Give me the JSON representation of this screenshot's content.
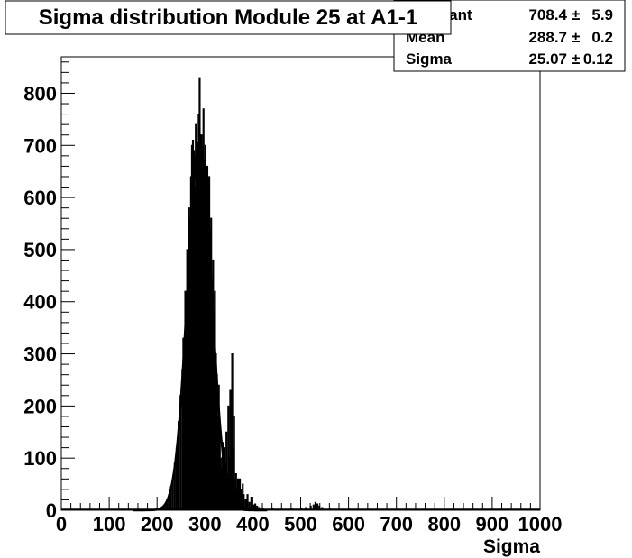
{
  "chart_data": {
    "type": "histogram",
    "title": "Sigma distribution Module 25 at A1-1",
    "xlabel": "Sigma",
    "ylabel": "",
    "xlim": [
      0,
      1000
    ],
    "ylim": [
      0,
      870
    ],
    "x_ticks": [
      "0",
      "100",
      "200",
      "300",
      "400",
      "500",
      "600",
      "700",
      "800",
      "900",
      "1000"
    ],
    "y_ticks": [
      "0",
      "100",
      "200",
      "300",
      "400",
      "500",
      "600",
      "700",
      "800"
    ],
    "grid": false,
    "histogram": {
      "bin_width": 2,
      "bins": [
        [
          200,
          2
        ],
        [
          204,
          3
        ],
        [
          208,
          5
        ],
        [
          212,
          8
        ],
        [
          216,
          12
        ],
        [
          220,
          20
        ],
        [
          224,
          30
        ],
        [
          228,
          45
        ],
        [
          232,
          60
        ],
        [
          236,
          90
        ],
        [
          240,
          120
        ],
        [
          244,
          170
        ],
        [
          248,
          220
        ],
        [
          252,
          270
        ],
        [
          254,
          330
        ],
        [
          256,
          300
        ],
        [
          258,
          420
        ],
        [
          260,
          380
        ],
        [
          262,
          500
        ],
        [
          264,
          450
        ],
        [
          266,
          580
        ],
        [
          268,
          560
        ],
        [
          270,
          640
        ],
        [
          272,
          700
        ],
        [
          274,
          710
        ],
        [
          276,
          690
        ],
        [
          278,
          620
        ],
        [
          280,
          740
        ],
        [
          282,
          660
        ],
        [
          284,
          700
        ],
        [
          286,
          760
        ],
        [
          288,
          830
        ],
        [
          290,
          650
        ],
        [
          292,
          720
        ],
        [
          294,
          690
        ],
        [
          296,
          770
        ],
        [
          298,
          650
        ],
        [
          300,
          700
        ],
        [
          302,
          620
        ],
        [
          304,
          660
        ],
        [
          306,
          590
        ],
        [
          308,
          640
        ],
        [
          310,
          540
        ],
        [
          312,
          560
        ],
        [
          314,
          420
        ],
        [
          316,
          480
        ],
        [
          318,
          350
        ],
        [
          320,
          420
        ],
        [
          322,
          300
        ],
        [
          324,
          260
        ],
        [
          326,
          180
        ],
        [
          328,
          240
        ],
        [
          330,
          150
        ],
        [
          332,
          100
        ],
        [
          334,
          80
        ],
        [
          336,
          130
        ],
        [
          338,
          60
        ],
        [
          340,
          120
        ],
        [
          342,
          90
        ],
        [
          344,
          150
        ],
        [
          346,
          70
        ],
        [
          348,
          200
        ],
        [
          350,
          100
        ],
        [
          352,
          230
        ],
        [
          354,
          80
        ],
        [
          356,
          300
        ],
        [
          358,
          120
        ],
        [
          360,
          180
        ],
        [
          362,
          60
        ],
        [
          364,
          70
        ],
        [
          366,
          40
        ],
        [
          368,
          60
        ],
        [
          370,
          50
        ],
        [
          372,
          60
        ],
        [
          374,
          40
        ],
        [
          376,
          30
        ],
        [
          378,
          50
        ],
        [
          380,
          30
        ],
        [
          384,
          20
        ],
        [
          388,
          30
        ],
        [
          392,
          15
        ],
        [
          396,
          25
        ],
        [
          400,
          10
        ],
        [
          404,
          12
        ],
        [
          408,
          8
        ],
        [
          412,
          5
        ],
        [
          420,
          4
        ],
        [
          440,
          3
        ],
        [
          460,
          2
        ],
        [
          480,
          3
        ],
        [
          500,
          4
        ],
        [
          510,
          5
        ],
        [
          520,
          8
        ],
        [
          526,
          10
        ],
        [
          530,
          15
        ],
        [
          534,
          12
        ],
        [
          538,
          8
        ],
        [
          544,
          5
        ],
        [
          560,
          3
        ],
        [
          600,
          2
        ]
      ]
    },
    "fit": {
      "function": "gaus",
      "constant": 708.4,
      "mean": 288.7,
      "sigma": 25.07
    }
  },
  "stats_box": {
    "rows": [
      {
        "label": "Constant",
        "value": "708.4",
        "error": "5.9"
      },
      {
        "label": "Mean",
        "value": "288.7",
        "error": "0.2"
      },
      {
        "label": "Sigma",
        "value": "25.07",
        "error": "0.12"
      }
    ],
    "pm_symbol": "±"
  }
}
